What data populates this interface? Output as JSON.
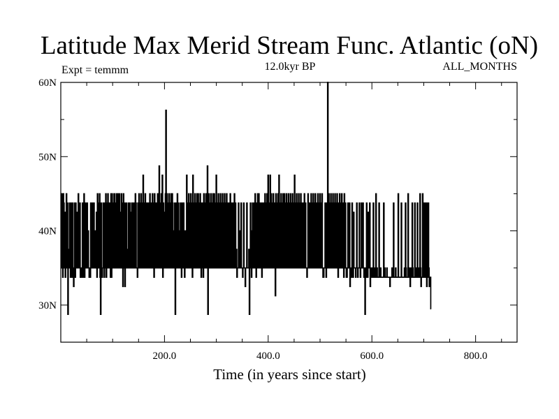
{
  "chart_data": {
    "type": "line",
    "title": "Latitude Max Merid Stream Func. Atlantic (oN)",
    "subtitle": "12.0kyr BP",
    "left_annotation": "Expt = temmm",
    "right_annotation": "ALL_MONTHS",
    "xlabel": "Time (in years since start)",
    "ylabel": "",
    "xlim": [
      0,
      880
    ],
    "ylim": [
      25,
      60
    ],
    "x_ticks": [
      200,
      400,
      600,
      800
    ],
    "x_tick_labels": [
      "200.0",
      "400.0",
      "600.0",
      "800.0"
    ],
    "y_ticks": [
      30,
      40,
      50,
      60
    ],
    "y_tick_labels": [
      "30N",
      "40N",
      "50N",
      "60N"
    ],
    "grid": false,
    "line_color": "#000000",
    "series": [
      {
        "name": "",
        "x_start": 1,
        "x_step": 1,
        "levels": [
          32.5,
          33.75,
          35,
          37.5,
          40,
          42.5,
          43.75,
          45,
          47.5,
          48.75
        ],
        "values": [
          35,
          45,
          35,
          33.75,
          45,
          43.75,
          35,
          42.5,
          33.75,
          35,
          45,
          35,
          43.75,
          28.75,
          37.5,
          35,
          43.75,
          35,
          33.75,
          43.75,
          35,
          33.75,
          43.75,
          35,
          32.5,
          35,
          43.75,
          33.75,
          43.75,
          35,
          37.5,
          42.5,
          35,
          45,
          35,
          35,
          43.75,
          33.75,
          35,
          35,
          33.75,
          43.75,
          35,
          33.75,
          45,
          33.75,
          35,
          43.75,
          37.5,
          35,
          43.75,
          35,
          40,
          35,
          33.75,
          35,
          33.75,
          43.75,
          35,
          35,
          43.75,
          35,
          40,
          43.75,
          35,
          35,
          40,
          35,
          42.5,
          33.75,
          45,
          43.75,
          35,
          35,
          45,
          33.75,
          28.75,
          43.75,
          35,
          33.75,
          35,
          43.75,
          35,
          33.75,
          43.75,
          35,
          45,
          33.75,
          43.75,
          35,
          45,
          43.75,
          35,
          35,
          43.75,
          33.75,
          45,
          33.75,
          45,
          35,
          43.75,
          35,
          45,
          45,
          35,
          43.75,
          35,
          45,
          35,
          45,
          43.75,
          35,
          45,
          35,
          42.5,
          35,
          45,
          43.75,
          35,
          32.5,
          45,
          35,
          43.75,
          32.5,
          43.75,
          35,
          43.75,
          35,
          35,
          37.5,
          43.75,
          35,
          43.75,
          35,
          42.5,
          35,
          43.75,
          35,
          43.75,
          35,
          43.75,
          35,
          35,
          45,
          43.75,
          35,
          35,
          33.75,
          43.75,
          35,
          45,
          35,
          43.75,
          35,
          45,
          35,
          43.75,
          35,
          47.5,
          35,
          43.75,
          35,
          45,
          35,
          43.75,
          35,
          43.75,
          35,
          35,
          43.75,
          35,
          45,
          35,
          40,
          43.75,
          35,
          45,
          35,
          43.75,
          33.75,
          45,
          35,
          43.75,
          35,
          43.75,
          35,
          45,
          35,
          43.75,
          48.75,
          35,
          43.75,
          35,
          45,
          35,
          47.5,
          33.75,
          43.75,
          35,
          42.5,
          35,
          45,
          56.25,
          35,
          45,
          35,
          43.75,
          35,
          45,
          35,
          43.75,
          35,
          45,
          35,
          45,
          43.75,
          35,
          40,
          35,
          43.75,
          28.75,
          35,
          43.75,
          35,
          45,
          35,
          43.75,
          35,
          35,
          40,
          43.75,
          35,
          33.75,
          43.75,
          35,
          35,
          43.75,
          35,
          33.75,
          40,
          35,
          37.5,
          47.5,
          35,
          43.75,
          35,
          45,
          35,
          43.75,
          35,
          45,
          35,
          43.75,
          33.75,
          47.5,
          35,
          43.75,
          35,
          45,
          35,
          43.75,
          35,
          45,
          35,
          45,
          35,
          43.75,
          35,
          45,
          35,
          33.75,
          43.75,
          35,
          43.75,
          33.75,
          45,
          35,
          43.75,
          35,
          45,
          35,
          43.75,
          48.75,
          28.75,
          35,
          45,
          35,
          43.75,
          35,
          45,
          35,
          43.75,
          35,
          45,
          35,
          45,
          35,
          43.75,
          35,
          47.5,
          35,
          43.75,
          35,
          45,
          35,
          43.75,
          35,
          45,
          35,
          43.75,
          35,
          45,
          35,
          43.75,
          35,
          45,
          35,
          43.75,
          35,
          45,
          35,
          43.75,
          35,
          35,
          43.75,
          35,
          45,
          35,
          43.75,
          35,
          35,
          43.75,
          35,
          35,
          45,
          35,
          43.75,
          35,
          37.5,
          33.75,
          35,
          35,
          43.75,
          35,
          35,
          40,
          35,
          43.75,
          35,
          35,
          33.75,
          35,
          43.75,
          35,
          35,
          32.5,
          35,
          35,
          43.75,
          35,
          35,
          35,
          37.5,
          28.75,
          35,
          43.75,
          35,
          33.75,
          40,
          43.75,
          35,
          35,
          43.75,
          35,
          45,
          35,
          33.75,
          43.75,
          35,
          45,
          35,
          45,
          35,
          43.75,
          35,
          43.75,
          35,
          33.75,
          43.75,
          35,
          35,
          43.75,
          35,
          45,
          35,
          43.75,
          35,
          45,
          35,
          47.5,
          35,
          43.75,
          35,
          47.5,
          35,
          45,
          35,
          43.75,
          35,
          45,
          35,
          43.75,
          35,
          31.25,
          45,
          35,
          43.75,
          35,
          45,
          35,
          47.5,
          35,
          43.75,
          35,
          45,
          35,
          43.75,
          35,
          45,
          35,
          45,
          35,
          43.75,
          35,
          45,
          35,
          43.75,
          35,
          45,
          35,
          43.75,
          35,
          45,
          35,
          43.75,
          35,
          45,
          35,
          43.75,
          35,
          47.5,
          35,
          43.75,
          35,
          45,
          35,
          43.75,
          35,
          45,
          35,
          43.75,
          35,
          45,
          35,
          43.75,
          35,
          35,
          43.75,
          35,
          45,
          35,
          43.75,
          35,
          35,
          33.75,
          35,
          45,
          35,
          43.75,
          35,
          43.75,
          35,
          45,
          35,
          43.75,
          35,
          45,
          35,
          43.75,
          35,
          45,
          35,
          43.75,
          35,
          35,
          45,
          35,
          43.75,
          35,
          45,
          35,
          43.75,
          35,
          45,
          35,
          33.75,
          33.75,
          35,
          35,
          43.75,
          35,
          33.75,
          43.75,
          35,
          60,
          35,
          45,
          35,
          43.75,
          35,
          45,
          35,
          43.75,
          35,
          45,
          35,
          43.75,
          35,
          45,
          35,
          43.75,
          35,
          45,
          35,
          33.75,
          43.75,
          35,
          45,
          35,
          43.75,
          35,
          45,
          35,
          43.75,
          35,
          33.75,
          45,
          35,
          43.75,
          35,
          33.75,
          33.75,
          35,
          43.75,
          35,
          35,
          43.75,
          32.5,
          35,
          35,
          33.75,
          43.75,
          35,
          33.75,
          42.5,
          35,
          35,
          35,
          33.75,
          35,
          43.75,
          35,
          33.75,
          35,
          35,
          43.75,
          35,
          33.75,
          35,
          43.75,
          35,
          35,
          43.75,
          35,
          33.75,
          35,
          28.75,
          35,
          33.75,
          43.75,
          35,
          33.75,
          42.5,
          35,
          35,
          43.75,
          32.5,
          35,
          35,
          33.75,
          33.75,
          35,
          43.75,
          33.75,
          35,
          33.75,
          33.75,
          45,
          33.75,
          35,
          33.75,
          33.75,
          33.75,
          43.75,
          33.75,
          33.75,
          35,
          33.75,
          33.75,
          33.75,
          33.75,
          33.75,
          43.75,
          33.75,
          35,
          33.75,
          33.75,
          33.75,
          35,
          33.75,
          33.75,
          33.75,
          33.75,
          33.75,
          32.5,
          33.75,
          33.75,
          33.75,
          35,
          33.75,
          33.75,
          43.75,
          33.75,
          33.75,
          33.75,
          35,
          33.75,
          33.75,
          33.75,
          33.75,
          45,
          33.75,
          33.75,
          33.75,
          33.75,
          33.75,
          43.75,
          33.75,
          33.75,
          33.75,
          33.75,
          33.75,
          35,
          33.75,
          43.75,
          35,
          33.75,
          33.75,
          33.75,
          45,
          33.75,
          33.75,
          35,
          32.5,
          35,
          33.75,
          33.75,
          43.75,
          35,
          33.75,
          33.75,
          33.75,
          43.75,
          33.75,
          33.75,
          35,
          33.75,
          43.75,
          33.75,
          33.75,
          35,
          33.75,
          45,
          35,
          32.5,
          33.75,
          33.75,
          45,
          35,
          33.75,
          43.75,
          33.75,
          33.75,
          43.75,
          33.75,
          32.5,
          43.75,
          33.75,
          43.75,
          35,
          32.5,
          33.75,
          33.75,
          29.5
        ]
      }
    ]
  }
}
